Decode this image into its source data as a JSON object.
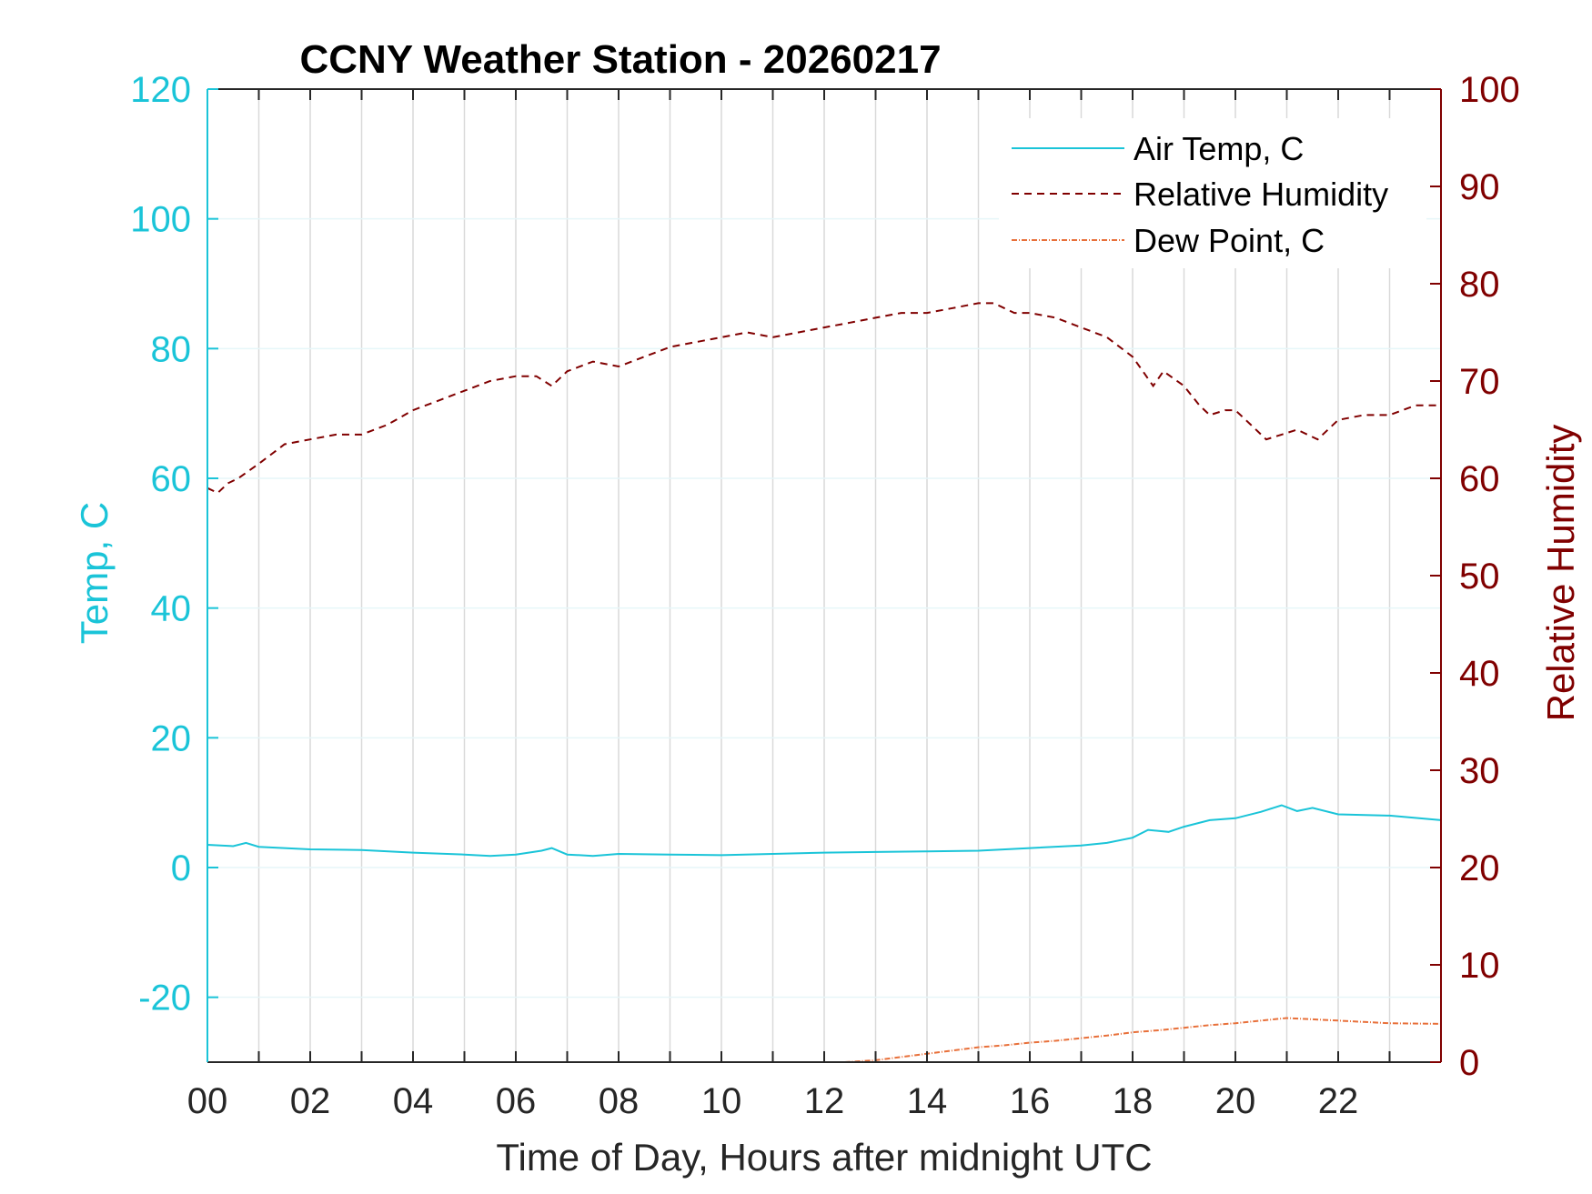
{
  "chart_data": {
    "type": "line",
    "title": "CCNY Weather Station - 20260217",
    "xlabel": "Time of Day, Hours after midnight UTC",
    "ylabel_left": "Temp, C",
    "ylabel_right": "Relative Humidity",
    "xlim": [
      0,
      24
    ],
    "ylim_left": [
      -30,
      120
    ],
    "ylim_right": [
      0,
      100
    ],
    "x_ticks": [
      0,
      2,
      4,
      6,
      8,
      10,
      12,
      14,
      16,
      18,
      20,
      22
    ],
    "x_tick_labels": [
      "00",
      "02",
      "04",
      "06",
      "08",
      "10",
      "12",
      "14",
      "16",
      "18",
      "20",
      "22"
    ],
    "y_left_ticks": [
      -20,
      0,
      20,
      40,
      60,
      80,
      100,
      120
    ],
    "y_right_ticks": [
      0,
      10,
      20,
      30,
      40,
      50,
      60,
      70,
      80,
      90,
      100
    ],
    "grid": true,
    "legend_position": "top-right",
    "colors": {
      "left_axis": "#1ac4d8",
      "right_axis": "#800000",
      "air_temp": "#1ac4d8",
      "humidity": "#800000",
      "dew_point": "#e8703a",
      "grid": "#d9d9d9",
      "frame": "#262626"
    },
    "series": [
      {
        "name": "Air Temp, C",
        "axis": "left",
        "style": "solid",
        "x": [
          0,
          0.5,
          0.75,
          1,
          2,
          3,
          4,
          5,
          5.5,
          6,
          6.5,
          6.7,
          7,
          7.5,
          8,
          9,
          10,
          11,
          12,
          13,
          14,
          15,
          16,
          17,
          17.5,
          18,
          18.3,
          18.7,
          19,
          19.5,
          20,
          20.5,
          20.9,
          21.2,
          21.5,
          22,
          23,
          24
        ],
        "values": [
          3.5,
          3.3,
          3.8,
          3.2,
          2.8,
          2.7,
          2.3,
          2.0,
          1.8,
          2.0,
          2.6,
          3.0,
          2.0,
          1.8,
          2.1,
          2.0,
          1.9,
          2.1,
          2.3,
          2.4,
          2.5,
          2.6,
          3.0,
          3.4,
          3.8,
          4.6,
          5.8,
          5.5,
          6.3,
          7.3,
          7.6,
          8.6,
          9.6,
          8.7,
          9.2,
          8.2,
          8.0,
          7.3
        ]
      },
      {
        "name": "Relative Humidity",
        "axis": "right",
        "style": "dashed",
        "x": [
          0,
          0.2,
          0.4,
          0.6,
          1,
          1.5,
          2,
          2.5,
          3,
          3.5,
          4,
          4.5,
          5,
          5.5,
          6,
          6.4,
          6.7,
          7,
          7.5,
          8,
          8.5,
          9,
          9.5,
          10,
          10.5,
          11,
          11.5,
          12,
          12.5,
          13,
          13.5,
          14,
          14.5,
          15,
          15.3,
          15.7,
          16,
          16.5,
          17,
          17.5,
          18,
          18.2,
          18.4,
          18.6,
          19,
          19.3,
          19.5,
          19.8,
          20,
          20.3,
          20.6,
          20.9,
          21.2,
          21.6,
          22,
          22.5,
          23,
          23.5,
          24
        ],
        "values": [
          59,
          58.5,
          59.5,
          60,
          61.5,
          63.5,
          64,
          64.5,
          64.5,
          65.5,
          67,
          68,
          69,
          70,
          70.5,
          70.5,
          69.5,
          71,
          72,
          71.5,
          72.5,
          73.5,
          74,
          74.5,
          75,
          74.5,
          75,
          75.5,
          76,
          76.5,
          77,
          77,
          77.5,
          78,
          78,
          77,
          77,
          76.5,
          75.5,
          74.5,
          72.5,
          71,
          69.5,
          71,
          69.5,
          67.5,
          66.5,
          67,
          67,
          65.5,
          64,
          64.5,
          65,
          64,
          66,
          66.5,
          66.5,
          67.5,
          67.5
        ]
      },
      {
        "name": "Dew Point, C",
        "axis": "left",
        "style": "dash-dot",
        "x": [
          12.4,
          13,
          13.5,
          14,
          14.5,
          15,
          15.5,
          16,
          16.5,
          17,
          17.5,
          18,
          18.5,
          19,
          19.5,
          20,
          20.5,
          21,
          21.5,
          22,
          22.5,
          23,
          24
        ],
        "values": [
          -30,
          -29.7,
          -29.2,
          -28.7,
          -28.2,
          -27.7,
          -27.4,
          -27.0,
          -26.7,
          -26.3,
          -25.9,
          -25.4,
          -25.1,
          -24.7,
          -24.3,
          -24.0,
          -23.6,
          -23.2,
          -23.4,
          -23.6,
          -23.8,
          -24.0,
          -24.1
        ]
      }
    ]
  }
}
